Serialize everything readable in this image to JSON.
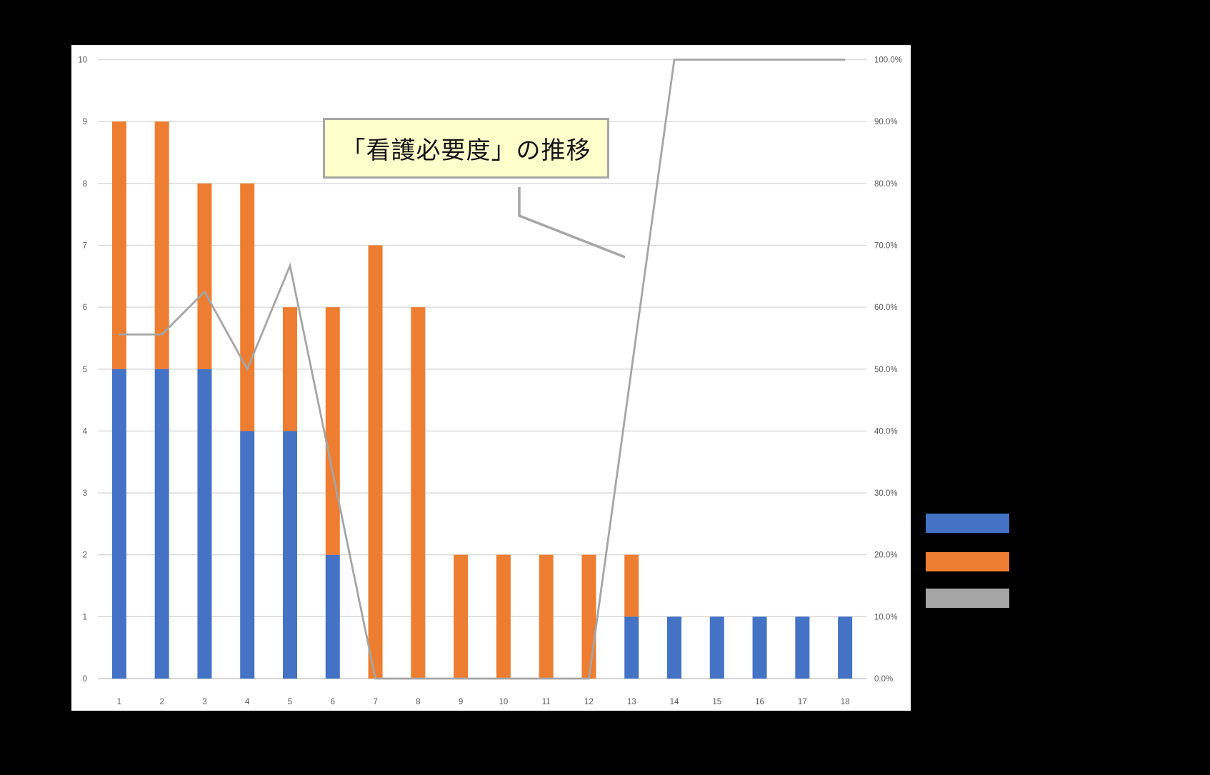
{
  "annotation": {
    "title": "「看護必要度」の推移"
  },
  "chart_data": {
    "type": "bar",
    "subtype": "stacked-column-with-percentage-line",
    "title": "「看護必要度」の推移",
    "categories": [
      "1",
      "2",
      "3",
      "4",
      "5",
      "6",
      "7",
      "8",
      "9",
      "10",
      "11",
      "12",
      "13",
      "14",
      "15",
      "16",
      "17",
      "18"
    ],
    "series": [
      {
        "name": "blue",
        "type": "bar",
        "axis": "left",
        "color": "#4472C4",
        "values": [
          5,
          5,
          5,
          4,
          4,
          2,
          0,
          0,
          0,
          0,
          0,
          0,
          1,
          1,
          1,
          1,
          1,
          1
        ]
      },
      {
        "name": "orange",
        "type": "bar",
        "axis": "left",
        "color": "#ED7D31",
        "values": [
          4,
          4,
          3,
          4,
          2,
          4,
          7,
          6,
          2,
          2,
          2,
          2,
          1,
          0,
          0,
          0,
          0,
          0
        ]
      },
      {
        "name": "gray-line",
        "type": "line",
        "axis": "right",
        "color": "#A5A5A5",
        "values": [
          55.6,
          55.6,
          62.5,
          50,
          66.7,
          33.3,
          0,
          0,
          0,
          0,
          0,
          0,
          50,
          100,
          100,
          100,
          100,
          100
        ]
      }
    ],
    "left_axis": {
      "min": 0,
      "max": 10,
      "ticks": [
        "0",
        "1",
        "2",
        "3",
        "4",
        "5",
        "6",
        "7",
        "8",
        "9",
        "10"
      ]
    },
    "right_axis": {
      "min": 0,
      "max": 100,
      "ticks": [
        "0.0%",
        "10.0%",
        "20.0%",
        "30.0%",
        "40.0%",
        "50.0%",
        "60.0%",
        "70.0%",
        "80.0%",
        "90.0%",
        "100.0%"
      ]
    },
    "grid": true,
    "legend_position": "right-outside",
    "colors": {
      "plot_background": "#FFFFFF",
      "page_background": "#000000",
      "gridline": "#D9D9D9",
      "axis_text": "#595959",
      "annotation_fill": "#FFFFCC",
      "annotation_border": "#A6A6A6"
    }
  },
  "legend": {
    "items": [
      {
        "name": "blue",
        "color": "#4472C4"
      },
      {
        "name": "orange",
        "color": "#ED7D31"
      },
      {
        "name": "gray",
        "color": "#A5A5A5"
      }
    ]
  }
}
